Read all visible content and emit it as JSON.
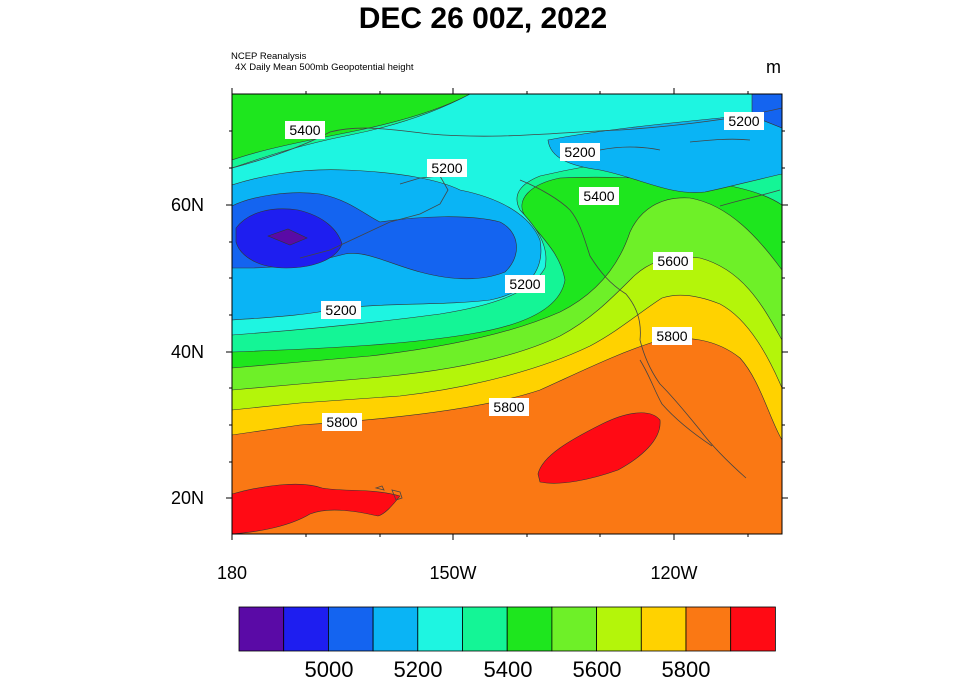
{
  "header": {
    "title": "DEC 26 00Z, 2022",
    "source_line1": "NCEP Reanalysis",
    "source_line2": "4X Daily Mean 500mb Geopotential height",
    "units": "m"
  },
  "map": {
    "latitude_labels": [
      "60N",
      "40N",
      "20N"
    ],
    "longitude_labels": [
      "180",
      "150W",
      "120W"
    ],
    "contour_labels": [
      "5400",
      "5200",
      "5200",
      "5400",
      "5600",
      "5800",
      "5200",
      "5200",
      "5200",
      "5800",
      "5800"
    ]
  },
  "colorbar": {
    "tick_labels": [
      "5000",
      "5200",
      "5400",
      "5600",
      "5800"
    ],
    "colors": [
      "#5a0aa6",
      "#1e1ef0",
      "#1464f0",
      "#0ab4f5",
      "#1ef5e1",
      "#14f596",
      "#1ee61e",
      "#6ef028",
      "#b4f50a",
      "#ffd200",
      "#fa7814",
      "#ff0a14"
    ]
  }
}
